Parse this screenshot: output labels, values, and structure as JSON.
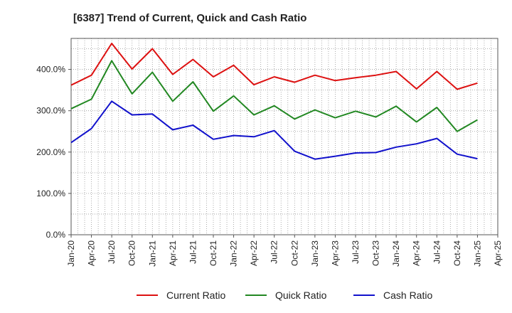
{
  "chart_data": {
    "type": "line",
    "title": "[6387]  Trend of Current, Quick and Cash Ratio",
    "xlabel": "",
    "ylabel": "",
    "ylim": [
      0,
      475
    ],
    "yticks": [
      0,
      100,
      200,
      300,
      400
    ],
    "ytick_labels": [
      "0.0%",
      "100.0%",
      "200.0%",
      "300.0%",
      "400.0%"
    ],
    "categories": [
      "Jan-20",
      "Apr-20",
      "Jul-20",
      "Oct-20",
      "Jan-21",
      "Apr-21",
      "Jul-21",
      "Oct-21",
      "Jan-22",
      "Apr-22",
      "Jul-22",
      "Oct-22",
      "Jan-23",
      "Apr-23",
      "Jul-23",
      "Oct-23",
      "Jan-24",
      "Apr-24",
      "Jul-24",
      "Oct-24",
      "Jan-25",
      "Apr-25"
    ],
    "grid": true,
    "legend_position": "bottom",
    "series": [
      {
        "name": "Current Ratio",
        "color": "#dd1111",
        "values": [
          362,
          386,
          463,
          401,
          450,
          388,
          424,
          382,
          410,
          363,
          382,
          369,
          386,
          373,
          380,
          386,
          395,
          353,
          395,
          352,
          367,
          null
        ]
      },
      {
        "name": "Quick Ratio",
        "color": "#228822",
        "values": [
          305,
          328,
          421,
          341,
          393,
          323,
          370,
          299,
          336,
          290,
          312,
          280,
          302,
          283,
          299,
          285,
          311,
          273,
          308,
          250,
          278,
          null
        ]
      },
      {
        "name": "Cash Ratio",
        "color": "#1111cc",
        "values": [
          223,
          257,
          323,
          290,
          292,
          254,
          265,
          231,
          240,
          237,
          252,
          202,
          183,
          190,
          198,
          199,
          212,
          220,
          233,
          195,
          184,
          null
        ]
      }
    ]
  }
}
